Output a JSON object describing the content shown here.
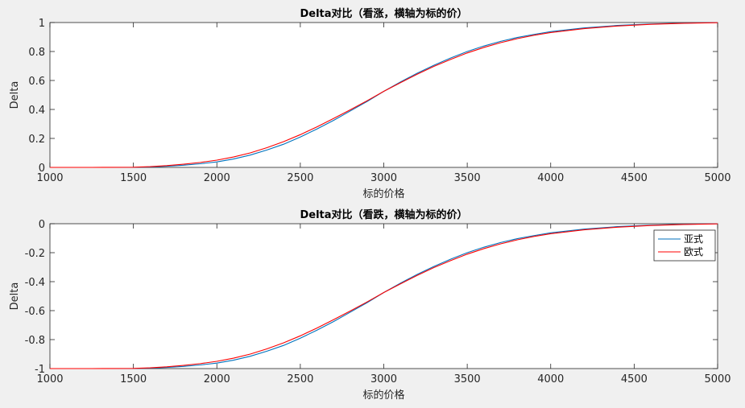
{
  "chart_data": [
    {
      "type": "line",
      "title": "Delta对比（看涨，横轴为标的价）",
      "xlabel": "标的价格",
      "ylabel": "Delta",
      "xlim": [
        1000,
        5000
      ],
      "ylim": [
        0,
        1
      ],
      "xticks": [
        "1000",
        "1500",
        "2000",
        "2500",
        "3000",
        "3500",
        "4000",
        "4500",
        "5000"
      ],
      "yticks": [
        "0",
        "0.2",
        "0.4",
        "0.6",
        "0.8",
        "1"
      ],
      "legend": null,
      "x": [
        1000,
        1250,
        1500,
        1600,
        1700,
        1800,
        1900,
        2000,
        2100,
        2200,
        2300,
        2400,
        2500,
        2600,
        2700,
        2800,
        2900,
        3000,
        3100,
        3200,
        3300,
        3400,
        3500,
        3600,
        3700,
        3800,
        3900,
        4000,
        4200,
        4400,
        4600,
        4800,
        5000
      ],
      "series": [
        {
          "color": "#0072bd",
          "values": [
            0,
            0,
            0,
            0.003,
            0.008,
            0.015,
            0.025,
            0.038,
            0.058,
            0.085,
            0.12,
            0.16,
            0.21,
            0.265,
            0.325,
            0.39,
            0.455,
            0.525,
            0.59,
            0.65,
            0.705,
            0.755,
            0.8,
            0.838,
            0.87,
            0.897,
            0.918,
            0.937,
            0.963,
            0.98,
            0.99,
            0.996,
            1.0
          ]
        },
        {
          "color": "#ff0000",
          "values": [
            0,
            0,
            0.001,
            0.005,
            0.012,
            0.022,
            0.034,
            0.05,
            0.072,
            0.1,
            0.136,
            0.178,
            0.226,
            0.28,
            0.338,
            0.398,
            0.46,
            0.525,
            0.585,
            0.643,
            0.697,
            0.745,
            0.79,
            0.828,
            0.861,
            0.889,
            0.912,
            0.931,
            0.958,
            0.976,
            0.988,
            0.995,
            0.999
          ]
        }
      ]
    },
    {
      "type": "line",
      "title": "Delta对比（看跌，横轴为标的价）",
      "xlabel": "标的价格",
      "ylabel": "Delta",
      "xlim": [
        1000,
        5000
      ],
      "ylim": [
        -1,
        0
      ],
      "xticks": [
        "1000",
        "1500",
        "2000",
        "2500",
        "3000",
        "3500",
        "4000",
        "4500",
        "5000"
      ],
      "yticks": [
        "-1",
        "-0.8",
        "-0.6",
        "-0.4",
        "-0.2",
        "0"
      ],
      "legend": "top-right",
      "x": [
        1000,
        1250,
        1500,
        1600,
        1700,
        1800,
        1900,
        2000,
        2100,
        2200,
        2300,
        2400,
        2500,
        2600,
        2700,
        2800,
        2900,
        3000,
        3100,
        3200,
        3300,
        3400,
        3500,
        3600,
        3700,
        3800,
        3900,
        4000,
        4200,
        4400,
        4600,
        4800,
        5000
      ],
      "series": [
        {
          "name": "亚式",
          "color": "#0072bd",
          "values": [
            -1,
            -1,
            -1,
            -0.997,
            -0.992,
            -0.985,
            -0.975,
            -0.962,
            -0.942,
            -0.915,
            -0.88,
            -0.84,
            -0.79,
            -0.735,
            -0.675,
            -0.61,
            -0.545,
            -0.475,
            -0.41,
            -0.35,
            -0.295,
            -0.245,
            -0.2,
            -0.162,
            -0.13,
            -0.103,
            -0.082,
            -0.063,
            -0.037,
            -0.02,
            -0.01,
            -0.004,
            0
          ]
        },
        {
          "name": "欧式",
          "color": "#ff0000",
          "values": [
            -1,
            -1,
            -0.999,
            -0.995,
            -0.988,
            -0.978,
            -0.966,
            -0.95,
            -0.928,
            -0.9,
            -0.864,
            -0.822,
            -0.774,
            -0.72,
            -0.662,
            -0.602,
            -0.54,
            -0.475,
            -0.415,
            -0.357,
            -0.303,
            -0.255,
            -0.21,
            -0.172,
            -0.139,
            -0.111,
            -0.088,
            -0.069,
            -0.042,
            -0.024,
            -0.012,
            -0.005,
            -0.001
          ]
        }
      ]
    }
  ]
}
